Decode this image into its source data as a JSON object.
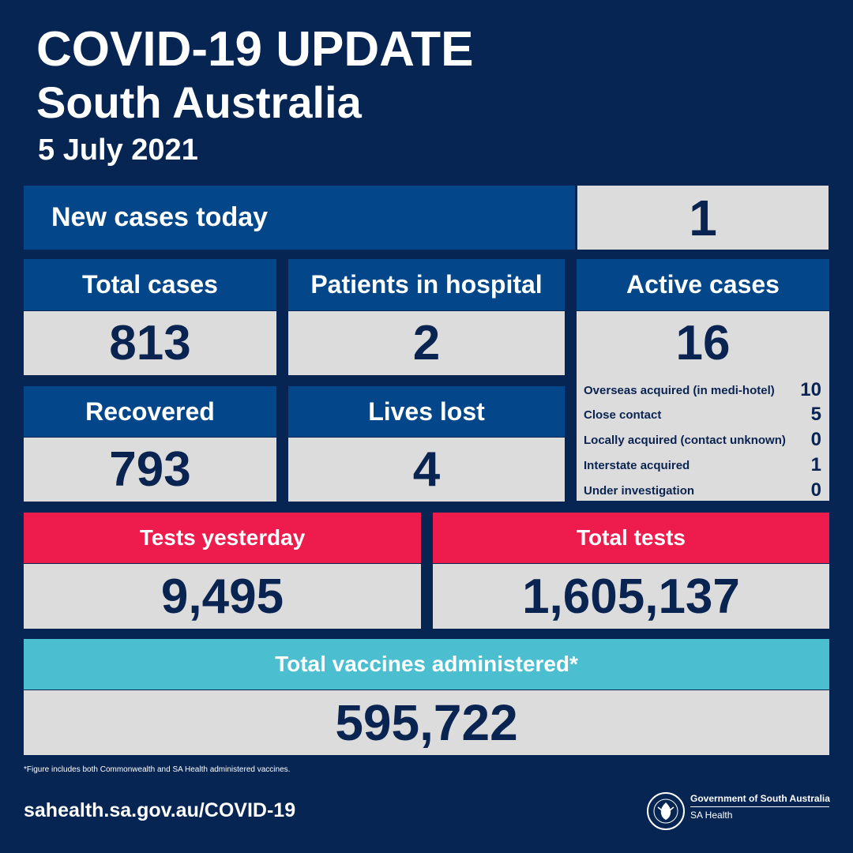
{
  "header": {
    "title": "COVID-19 UPDATE",
    "subtitle": "South Australia",
    "date": "5 July 2021"
  },
  "new_cases": {
    "label": "New cases today",
    "value": "1"
  },
  "total_cases": {
    "label": "Total cases",
    "value": "813"
  },
  "patients_in_hospital": {
    "label": "Patients in hospital",
    "value": "2"
  },
  "active_cases": {
    "label": "Active cases",
    "value": "16",
    "breakdown": [
      {
        "label": "Overseas acquired (in medi-hotel)",
        "count": "10"
      },
      {
        "label": "Close contact",
        "count": "5"
      },
      {
        "label": "Locally acquired (contact unknown)",
        "count": "0"
      },
      {
        "label": "Interstate acquired",
        "count": "1"
      },
      {
        "label": "Under investigation",
        "count": "0"
      }
    ]
  },
  "recovered": {
    "label": "Recovered",
    "value": "793"
  },
  "lives_lost": {
    "label": "Lives lost",
    "value": "4"
  },
  "tests_yesterday": {
    "label": "Tests yesterday",
    "value": "9,495"
  },
  "total_tests": {
    "label": "Total tests",
    "value": "1,605,137"
  },
  "vaccines": {
    "label": "Total vaccines administered*",
    "value": "595,722"
  },
  "footnote": "*Figure includes both Commonwealth and SA Health administered vaccines.",
  "footer": {
    "website": "sahealth.sa.gov.au/COVID-19",
    "gov_line1": "Government of South Australia",
    "gov_line2": "SA Health"
  },
  "colors": {
    "background": "#062553",
    "header_blue": "#03478a",
    "value_grey": "#dcdcdc",
    "value_text": "#0a2452",
    "tests_red": "#ed1c4c",
    "vaccine_teal": "#4bbfcf"
  },
  "icons": {
    "logo": "south-australia-crest-icon"
  }
}
